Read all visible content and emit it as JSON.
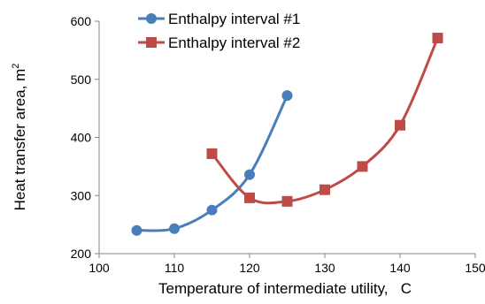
{
  "chart_data": {
    "type": "line",
    "xlabel": "Temperature of intermediate utility,   C",
    "ylabel": "Heat  transfer area, m",
    "ylabel_superscript": "2",
    "xlim": [
      100,
      150
    ],
    "ylim": [
      200,
      600
    ],
    "xticks": [
      "100",
      "110",
      "120",
      "130",
      "140",
      "150"
    ],
    "yticks": [
      "200",
      "300",
      "400",
      "500",
      "600"
    ],
    "grid": false,
    "legend_position": "top",
    "series": [
      {
        "name": "Enthalpy interval #1",
        "color": "#4a7ebb",
        "marker": "circle",
        "x": [
          105,
          110,
          115,
          120,
          125
        ],
        "y": [
          240,
          243,
          275,
          336,
          472
        ]
      },
      {
        "name": "Enthalpy interval #2",
        "color": "#be4b48",
        "marker": "square",
        "x": [
          115,
          120,
          125,
          130,
          135,
          140,
          145
        ],
        "y": [
          372,
          296,
          290,
          310,
          350,
          421,
          571
        ]
      }
    ]
  }
}
